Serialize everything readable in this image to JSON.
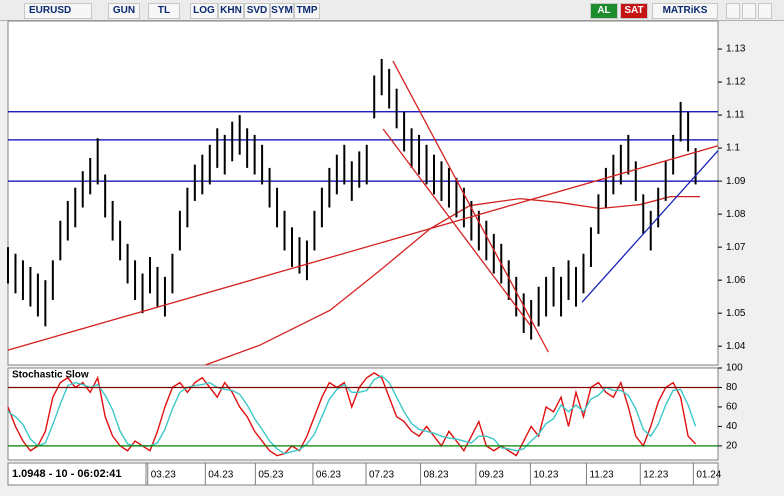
{
  "toolbar": {
    "symbol": "EURUSD",
    "buttons": [
      "GUN",
      "TL",
      "LOG",
      "KHN",
      "SVD",
      "SYM",
      "TMP"
    ],
    "buy": "AL",
    "sell": "SAT",
    "brand": "MATRiKS"
  },
  "status": "1.0948 - 10 - 06:02:41",
  "chart_data": [
    {
      "type": "range",
      "color": "#000000",
      "high": [
        1.07,
        1.068,
        1.066,
        1.064,
        1.062,
        1.06,
        1.066,
        1.078,
        1.084,
        1.088,
        1.093,
        1.097,
        1.103,
        1.092,
        1.084,
        1.078,
        1.071,
        1.066,
        1.062,
        1.067,
        1.064,
        1.061,
        1.068,
        1.081,
        1.088,
        1.095,
        1.098,
        1.101,
        1.106,
        1.104,
        1.108,
        1.11,
        1.106,
        1.104,
        1.101,
        1.094,
        1.088,
        1.081,
        1.076,
        1.073,
        1.072,
        1.081,
        1.088,
        1.094,
        1.098,
        1.101,
        1.096,
        1.099,
        1.101,
        1.122,
        1.127,
        1.124,
        1.118,
        1.111,
        1.106,
        1.104,
        1.101,
        1.098,
        1.096,
        1.094,
        1.091,
        1.088,
        1.084,
        1.081,
        1.078,
        1.074,
        1.071,
        1.066,
        1.061,
        1.056,
        1.054,
        1.058,
        1.061,
        1.064,
        1.061,
        1.066,
        1.064,
        1.068,
        1.076,
        1.086,
        1.094,
        1.098,
        1.101,
        1.104,
        1.096,
        1.086,
        1.081,
        1.088,
        1.096,
        1.104,
        1.114,
        1.111,
        1.1
      ],
      "low": [
        1.059,
        1.056,
        1.054,
        1.052,
        1.049,
        1.046,
        1.054,
        1.066,
        1.072,
        1.076,
        1.082,
        1.086,
        1.089,
        1.079,
        1.072,
        1.066,
        1.059,
        1.054,
        1.05,
        1.056,
        1.052,
        1.049,
        1.056,
        1.069,
        1.076,
        1.084,
        1.086,
        1.089,
        1.094,
        1.092,
        1.096,
        1.098,
        1.094,
        1.092,
        1.089,
        1.082,
        1.076,
        1.069,
        1.064,
        1.062,
        1.06,
        1.069,
        1.076,
        1.082,
        1.086,
        1.089,
        1.084,
        1.088,
        1.089,
        1.109,
        1.116,
        1.112,
        1.106,
        1.099,
        1.094,
        1.092,
        1.089,
        1.086,
        1.084,
        1.082,
        1.079,
        1.076,
        1.072,
        1.069,
        1.066,
        1.062,
        1.059,
        1.054,
        1.049,
        1.044,
        1.042,
        1.046,
        1.049,
        1.052,
        1.049,
        1.054,
        1.052,
        1.056,
        1.064,
        1.074,
        1.082,
        1.086,
        1.089,
        1.092,
        1.084,
        1.074,
        1.069,
        1.076,
        1.084,
        1.092,
        1.102,
        1.099,
        1.089
      ],
      "xlim": [
        0,
        95
      ],
      "ylim": [
        1.0343,
        1.1385
      ],
      "yticks": [
        1.13,
        1.12,
        1.11,
        1.1,
        1.09,
        1.08,
        1.07,
        1.06,
        1.05,
        1.04
      ],
      "xticks": [
        {
          "value": 18.7,
          "label": "03.23"
        },
        {
          "value": 26.4,
          "label": "04.23"
        },
        {
          "value": 33.1,
          "label": "05.23"
        },
        {
          "value": 40.8,
          "label": "06.23"
        },
        {
          "value": 47.9,
          "label": "07.23"
        },
        {
          "value": 55.2,
          "label": "08.23"
        },
        {
          "value": 62.6,
          "label": "09.23"
        },
        {
          "value": 69.9,
          "label": "10.23"
        },
        {
          "value": 77.4,
          "label": "11.23"
        },
        {
          "value": 84.6,
          "label": "12.23"
        },
        {
          "value": 91.7,
          "label": "01.24"
        }
      ],
      "hlines": [
        {
          "value": 1.111,
          "color": "#0000b4"
        },
        {
          "value": 1.1025,
          "color": "#0000b4"
        },
        {
          "value": 1.09,
          "color": "#0000b4"
        }
      ],
      "trend_lines": [
        {
          "color": "#d42020",
          "x": [
            0,
            95
          ],
          "y": [
            1.0388,
            1.1007
          ]
        },
        {
          "color": "#d42020",
          "x": [
            51.5,
            72.3
          ],
          "y": [
            1.1264,
            1.0382
          ]
        },
        {
          "color": "#d42020",
          "x": [
            50.2,
            69.9
          ],
          "y": [
            1.1058,
            1.0463
          ]
        },
        {
          "color": "#1a22b8",
          "x": [
            76.8,
            95
          ],
          "y": [
            1.0533,
            1.0992
          ]
        }
      ],
      "moving_average": {
        "color": "#d42020",
        "x": [
          26.4,
          33.7,
          43.1,
          49.8,
          56.5,
          61.8,
          68.5,
          73.9,
          79.2,
          84.6,
          88.6,
          92.6
        ],
        "values": [
          1.0343,
          1.0403,
          1.0509,
          1.063,
          1.0756,
          1.0826,
          1.0847,
          1.0835,
          1.0817,
          1.0829,
          1.0853,
          1.0853
        ]
      }
    },
    {
      "type": "line",
      "title": "Stochastic Slow",
      "series": [
        {
          "color": "#e01010",
          "values": [
            60,
            40,
            25,
            15,
            20,
            35,
            70,
            85,
            90,
            80,
            85,
            75,
            90,
            50,
            30,
            20,
            15,
            25,
            20,
            15,
            35,
            60,
            80,
            85,
            75,
            85,
            90,
            80,
            70,
            85,
            75,
            60,
            50,
            35,
            25,
            15,
            10,
            12,
            20,
            15,
            30,
            50,
            70,
            85,
            80,
            85,
            60,
            80,
            90,
            95,
            90,
            70,
            50,
            45,
            35,
            30,
            40,
            30,
            20,
            35,
            25,
            15,
            30,
            45,
            20,
            15,
            20,
            15,
            10,
            25,
            40,
            30,
            60,
            55,
            70,
            40,
            75,
            50,
            80,
            85,
            75,
            70,
            85,
            60,
            30,
            20,
            40,
            65,
            80,
            85,
            70,
            30,
            22
          ]
        },
        {
          "color": "#3cc8c8",
          "values": [
            55,
            50,
            42,
            27,
            20,
            23,
            42,
            63,
            82,
            85,
            83,
            80,
            83,
            72,
            57,
            35,
            22,
            20,
            20,
            20,
            23,
            37,
            58,
            75,
            80,
            82,
            83,
            85,
            80,
            78,
            77,
            73,
            62,
            48,
            37,
            25,
            17,
            12,
            14,
            16,
            22,
            32,
            50,
            68,
            78,
            83,
            75,
            75,
            77,
            88,
            92,
            85,
            70,
            55,
            43,
            37,
            35,
            33,
            30,
            28,
            27,
            25,
            23,
            30,
            30,
            27,
            18,
            17,
            15,
            17,
            25,
            32,
            43,
            48,
            62,
            55,
            62,
            55,
            68,
            72,
            80,
            77,
            77,
            72,
            58,
            37,
            30,
            42,
            62,
            77,
            78,
            62,
            40
          ]
        }
      ],
      "xlim": [
        0,
        95
      ],
      "ylim": [
        5.5,
        100
      ],
      "yticks": [
        100,
        80,
        60,
        40,
        20
      ],
      "levels": [
        {
          "value": 80,
          "color": "#800000"
        },
        {
          "value": 20,
          "color": "#008000"
        }
      ]
    }
  ]
}
